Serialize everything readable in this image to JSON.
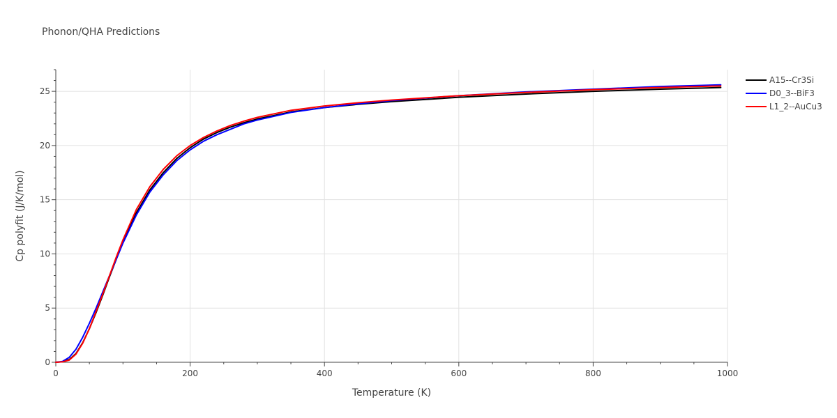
{
  "chart_data": {
    "type": "line",
    "title": "Phonon/QHA Predictions",
    "xlabel": "Temperature (K)",
    "ylabel": "Cp polyfit (J/K/mol)",
    "xlim": [
      0,
      1000
    ],
    "ylim": [
      0,
      27
    ],
    "xticks": [
      0,
      200,
      400,
      600,
      800,
      1000
    ],
    "yticks": [
      0,
      5,
      10,
      15,
      20,
      25
    ],
    "grid": true,
    "legend": "right",
    "series": [
      {
        "name": "A15--Cr3Si",
        "color": "#000000",
        "x": [
          0,
          10,
          20,
          30,
          40,
          50,
          60,
          70,
          80,
          90,
          100,
          120,
          140,
          160,
          180,
          200,
          220,
          240,
          260,
          280,
          300,
          350,
          400,
          450,
          500,
          600,
          700,
          800,
          900,
          990
        ],
        "y": [
          0,
          0.05,
          0.25,
          0.8,
          1.8,
          3.1,
          4.6,
          6.2,
          7.9,
          9.5,
          11.1,
          13.8,
          15.9,
          17.5,
          18.8,
          19.8,
          20.6,
          21.2,
          21.7,
          22.1,
          22.45,
          23.1,
          23.5,
          23.8,
          24.05,
          24.45,
          24.75,
          25.0,
          25.2,
          25.35
        ]
      },
      {
        "name": "D0_3--BiF3",
        "color": "#0000ff",
        "x": [
          0,
          10,
          20,
          30,
          40,
          50,
          60,
          70,
          80,
          90,
          100,
          120,
          140,
          160,
          180,
          200,
          220,
          240,
          260,
          280,
          300,
          350,
          400,
          450,
          500,
          600,
          700,
          800,
          900,
          990
        ],
        "y": [
          0,
          0.08,
          0.45,
          1.2,
          2.3,
          3.6,
          5.0,
          6.5,
          8.0,
          9.5,
          11.0,
          13.6,
          15.7,
          17.3,
          18.6,
          19.6,
          20.4,
          21.0,
          21.5,
          22.0,
          22.35,
          23.05,
          23.5,
          23.85,
          24.15,
          24.6,
          24.95,
          25.2,
          25.45,
          25.6
        ]
      },
      {
        "name": "L1_2--AuCu3",
        "color": "#ff0000",
        "x": [
          0,
          10,
          20,
          30,
          40,
          50,
          60,
          70,
          80,
          90,
          100,
          120,
          140,
          160,
          180,
          200,
          220,
          240,
          260,
          280,
          300,
          350,
          400,
          450,
          500,
          600,
          700,
          800,
          900,
          990
        ],
        "y": [
          0,
          0.04,
          0.2,
          0.75,
          1.75,
          3.1,
          4.7,
          6.3,
          8.0,
          9.7,
          11.3,
          14.1,
          16.2,
          17.8,
          19.05,
          20.0,
          20.75,
          21.35,
          21.85,
          22.25,
          22.6,
          23.25,
          23.65,
          23.95,
          24.2,
          24.6,
          24.9,
          25.15,
          25.35,
          25.5
        ]
      }
    ]
  }
}
